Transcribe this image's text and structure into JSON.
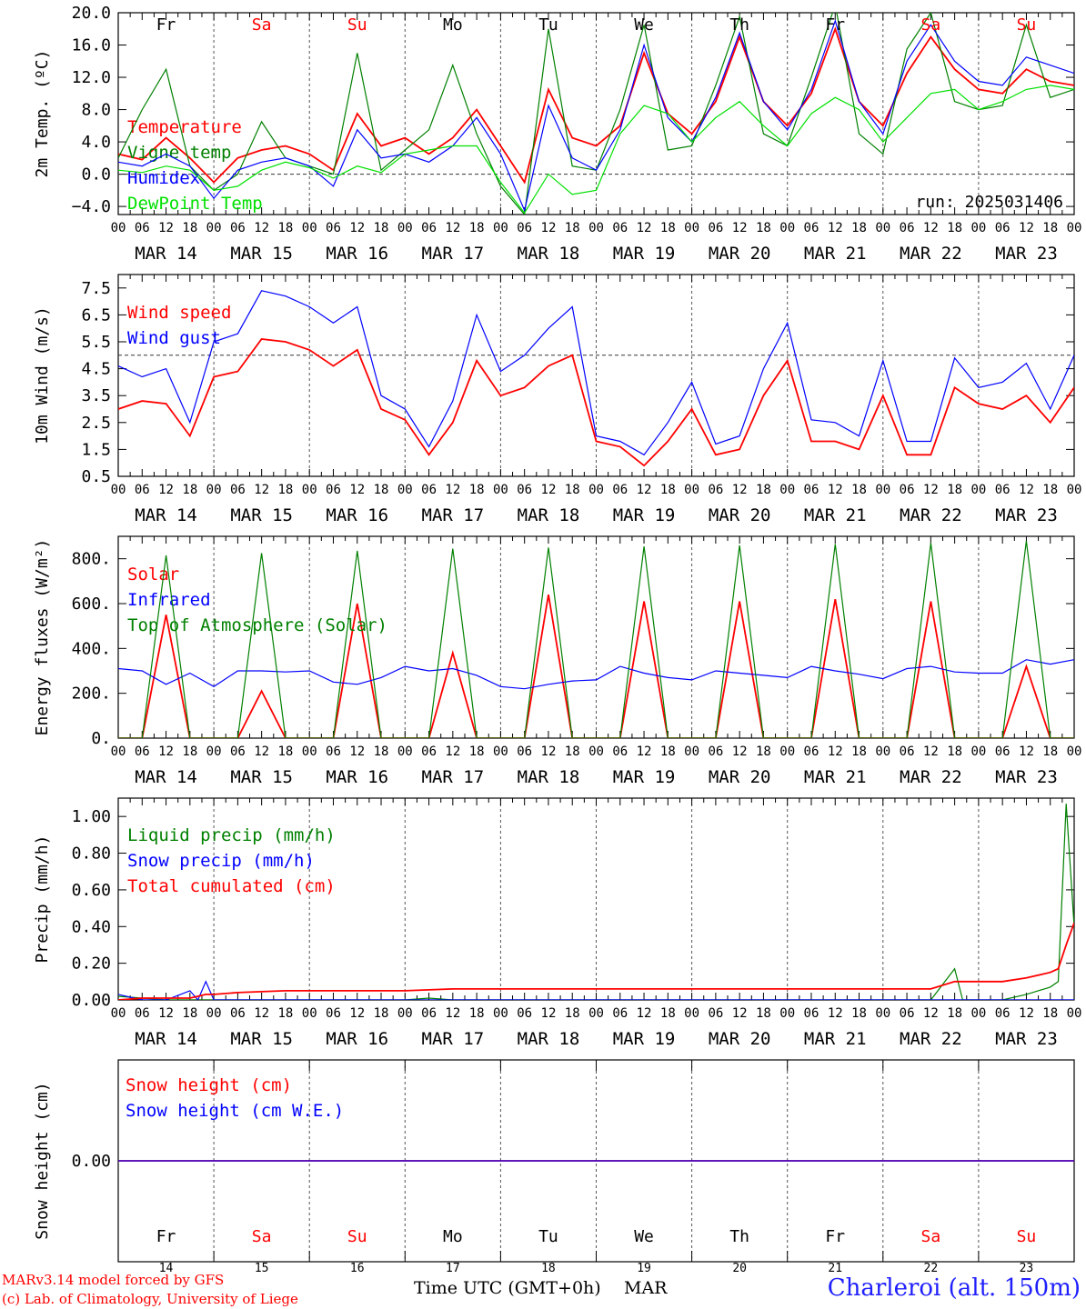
{
  "footer": {
    "credit_line1": "MARv3.14 model forced by GFS",
    "credit_line2": "(c) Lab. of Climatology, University of Liege",
    "x_caption": "Time UTC (GMT+0h)",
    "x_month": "MAR",
    "station": "Charleroi (alt. 150m)"
  },
  "colors": {
    "red": "#ff0000",
    "green": "#008000",
    "blue": "#0000ff",
    "lightgreen": "#00e000",
    "grid": "#555555"
  },
  "chart_data": [
    {
      "id": "temperature",
      "type": "line",
      "ylabel": "2m Temp. (ºC)",
      "ylim": [
        -5.0,
        20.0
      ],
      "yticks": [
        -4.0,
        0.0,
        4.0,
        8.0,
        12.0,
        16.0,
        20.0
      ],
      "ytick_labels": [
        "−4.0",
        "0.0",
        "4.0",
        "8.0",
        "12.0",
        "16.0",
        "20.0"
      ],
      "reference_line": 0,
      "top_day_labels": [
        "Fr",
        "Sa",
        "Su",
        "Mo",
        "Tu",
        "We",
        "Th",
        "Fr",
        "Sa",
        "Su"
      ],
      "annotation": "run: 2025031406",
      "x_hours": [
        0,
        6,
        12,
        18,
        24,
        30,
        36,
        42,
        48,
        54,
        60,
        66,
        72,
        78,
        84,
        90,
        96,
        102,
        108,
        114,
        120,
        126,
        132,
        138,
        144,
        150,
        156,
        162,
        168,
        174,
        180,
        186,
        192,
        198,
        204,
        210,
        216,
        222,
        228,
        234,
        240
      ],
      "series": [
        {
          "name": "Temperature",
          "color": "red",
          "values": [
            2.5,
            1.8,
            4.5,
            2.0,
            -1.0,
            2.0,
            3.0,
            3.5,
            2.5,
            0.5,
            7.5,
            3.5,
            4.5,
            2.5,
            4.5,
            8.0,
            3.5,
            -1.0,
            10.5,
            4.5,
            3.5,
            6.0,
            15.0,
            7.5,
            5.0,
            9.0,
            17.0,
            9.0,
            6.0,
            10.0,
            18.0,
            9.0,
            6.0,
            12.5,
            17.0,
            13.0,
            10.5,
            10.0,
            13.0,
            11.5,
            11.0
          ]
        },
        {
          "name": "Vigne temp",
          "color": "green",
          "values": [
            2.0,
            8.0,
            13.0,
            1.0,
            -2.0,
            0.0,
            6.5,
            2.0,
            1.0,
            0.0,
            15.0,
            0.5,
            3.0,
            5.5,
            13.5,
            5.0,
            -1.5,
            -5.0,
            18.0,
            1.0,
            0.5,
            8.0,
            18.5,
            3.0,
            3.5,
            11.0,
            19.5,
            5.0,
            3.5,
            12.0,
            21.0,
            5.0,
            2.5,
            15.5,
            20.0,
            9.0,
            8.0,
            8.5,
            18.5,
            9.5,
            10.5
          ]
        },
        {
          "name": "Humidex",
          "color": "blue",
          "values": [
            1.5,
            1.0,
            2.5,
            1.0,
            -3.0,
            0.5,
            1.5,
            2.0,
            1.0,
            -1.5,
            5.5,
            2.0,
            2.5,
            1.5,
            3.5,
            7.0,
            2.5,
            -4.5,
            8.5,
            2.0,
            0.5,
            5.5,
            16.0,
            7.0,
            4.0,
            9.5,
            17.5,
            9.0,
            5.5,
            10.5,
            19.0,
            9.0,
            5.0,
            14.0,
            18.5,
            14.0,
            11.5,
            11.0,
            14.5,
            13.5,
            12.5
          ]
        },
        {
          "name": "DewPoint Temp",
          "color": "lightgreen",
          "values": [
            0.5,
            0.2,
            1.0,
            0.5,
            -2.0,
            -1.5,
            0.5,
            1.5,
            0.8,
            -0.5,
            1.0,
            0.2,
            2.5,
            3.0,
            3.5,
            3.5,
            -1.0,
            -4.8,
            0.0,
            -2.5,
            -2.0,
            5.0,
            8.5,
            7.5,
            4.0,
            7.0,
            9.0,
            6.0,
            3.5,
            7.5,
            9.5,
            8.0,
            4.0,
            7.0,
            10.0,
            10.5,
            8.0,
            9.0,
            10.5,
            11.0,
            10.5
          ]
        }
      ]
    },
    {
      "id": "wind",
      "type": "line",
      "ylabel": "10m Wind (m/s)",
      "ylim": [
        0.5,
        8.0
      ],
      "yticks": [
        0.5,
        1.5,
        2.5,
        3.5,
        4.5,
        5.5,
        6.5,
        7.5
      ],
      "ytick_labels": [
        "0.5",
        "1.5",
        "2.5",
        "3.5",
        "4.5",
        "5.5",
        "6.5",
        "7.5"
      ],
      "reference_line": 5.0,
      "x_hours": [
        0,
        6,
        12,
        18,
        24,
        30,
        36,
        42,
        48,
        54,
        60,
        66,
        72,
        78,
        84,
        90,
        96,
        102,
        108,
        114,
        120,
        126,
        132,
        138,
        144,
        150,
        156,
        162,
        168,
        174,
        180,
        186,
        192,
        198,
        204,
        210,
        216,
        222,
        228,
        234,
        240
      ],
      "series": [
        {
          "name": "Wind speed",
          "color": "red",
          "values": [
            3.0,
            3.3,
            3.2,
            2.0,
            4.2,
            4.4,
            5.6,
            5.5,
            5.2,
            4.6,
            5.2,
            3.0,
            2.6,
            1.3,
            2.5,
            4.8,
            3.5,
            3.8,
            4.6,
            5.0,
            1.8,
            1.6,
            0.9,
            1.8,
            3.0,
            1.3,
            1.5,
            3.5,
            4.8,
            1.8,
            1.8,
            1.5,
            3.5,
            1.3,
            1.3,
            3.8,
            3.2,
            3.0,
            3.5,
            2.5,
            3.8
          ]
        },
        {
          "name": "Wind gust",
          "color": "blue",
          "values": [
            4.6,
            4.2,
            4.5,
            2.5,
            5.5,
            5.8,
            7.4,
            7.2,
            6.8,
            6.2,
            6.8,
            3.5,
            3.0,
            1.6,
            3.3,
            6.5,
            4.4,
            5.0,
            6.0,
            6.8,
            2.0,
            1.8,
            1.3,
            2.5,
            4.0,
            1.7,
            2.0,
            4.5,
            6.2,
            2.6,
            2.5,
            2.0,
            4.8,
            1.8,
            1.8,
            4.9,
            3.8,
            4.0,
            4.7,
            3.0,
            5.0
          ]
        }
      ]
    },
    {
      "id": "energy",
      "type": "line",
      "ylabel": "Energy fluxes (W/m²)",
      "ylim": [
        0,
        900
      ],
      "yticks": [
        0,
        200,
        400,
        600,
        800
      ],
      "ytick_labels": [
        "0.",
        "200.",
        "400.",
        "600.",
        "800."
      ],
      "x_hours": [
        0,
        6,
        12,
        18,
        24,
        30,
        36,
        42,
        48,
        54,
        60,
        66,
        72,
        78,
        84,
        90,
        96,
        102,
        108,
        114,
        120,
        126,
        132,
        138,
        144,
        150,
        156,
        162,
        168,
        174,
        180,
        186,
        192,
        198,
        204,
        210,
        216,
        222,
        228,
        234,
        240
      ],
      "series": [
        {
          "name": "Solar",
          "color": "red",
          "values": [
            0,
            0,
            550,
            0,
            0,
            0,
            210,
            0,
            0,
            0,
            600,
            0,
            0,
            0,
            380,
            0,
            0,
            0,
            640,
            0,
            0,
            0,
            610,
            0,
            0,
            0,
            610,
            0,
            0,
            0,
            620,
            0,
            0,
            0,
            610,
            0,
            0,
            0,
            320,
            0,
            0
          ]
        },
        {
          "name": "Infrared",
          "color": "blue",
          "values": [
            310,
            300,
            240,
            290,
            230,
            300,
            300,
            295,
            300,
            250,
            240,
            270,
            320,
            300,
            310,
            280,
            230,
            220,
            240,
            255,
            260,
            320,
            290,
            270,
            260,
            300,
            290,
            280,
            270,
            320,
            300,
            285,
            265,
            310,
            320,
            295,
            290,
            290,
            350,
            330,
            350
          ]
        },
        {
          "name": "Top of Atmosphere (Solar)",
          "color": "green",
          "values": [
            0,
            0,
            815,
            0,
            0,
            0,
            825,
            0,
            0,
            0,
            835,
            0,
            0,
            0,
            845,
            0,
            0,
            0,
            850,
            0,
            0,
            0,
            855,
            0,
            0,
            0,
            860,
            0,
            0,
            0,
            865,
            0,
            0,
            0,
            870,
            0,
            0,
            0,
            880,
            0,
            0
          ]
        }
      ]
    },
    {
      "id": "precip",
      "type": "line",
      "ylabel": "Precip (mm/h)",
      "ylim": [
        0,
        1.1
      ],
      "yticks": [
        0.0,
        0.2,
        0.4,
        0.6,
        0.8,
        1.0
      ],
      "ytick_labels": [
        "0.00",
        "0.20",
        "0.40",
        "0.60",
        "0.80",
        "1.00"
      ],
      "x_hours": [
        0,
        6,
        12,
        18,
        20,
        22,
        24,
        30,
        36,
        42,
        48,
        54,
        60,
        66,
        72,
        78,
        84,
        90,
        96,
        120,
        144,
        168,
        192,
        204,
        210,
        212,
        214,
        216,
        222,
        228,
        234,
        236,
        238,
        240
      ],
      "series": [
        {
          "name": "Liquid precip (mm/h)",
          "color": "green",
          "values": [
            0.02,
            0.01,
            0.0,
            0.0,
            0.0,
            0.0,
            0.0,
            0.0,
            0.0,
            0.0,
            0.0,
            0.0,
            0.0,
            0.0,
            0.0,
            0.01,
            0.0,
            0.0,
            0.0,
            0.0,
            0.0,
            0.0,
            0.0,
            0.0,
            0.17,
            0.0,
            0.0,
            0.0,
            0.0,
            0.03,
            0.07,
            0.1,
            1.07,
            0.4
          ]
        },
        {
          "name": "Snow precip (mm/h)",
          "color": "blue",
          "values": [
            0.03,
            0.0,
            0.0,
            0.05,
            0.0,
            0.1,
            0.0,
            0.0,
            0.0,
            0.0,
            0.0,
            0.0,
            0.0,
            0.0,
            0.0,
            0.0,
            0.0,
            0.0,
            0.0,
            0.0,
            0.0,
            0.0,
            0.0,
            0.0,
            0.0,
            0.0,
            0.0,
            0.0,
            0.0,
            0.0,
            0.0,
            0.0,
            0.0,
            0.0
          ]
        },
        {
          "name": "Total cumulated (cm)",
          "color": "red",
          "values": [
            0.0,
            0.01,
            0.01,
            0.01,
            0.02,
            0.03,
            0.03,
            0.04,
            0.045,
            0.05,
            0.05,
            0.05,
            0.05,
            0.05,
            0.05,
            0.055,
            0.06,
            0.06,
            0.06,
            0.06,
            0.06,
            0.06,
            0.06,
            0.06,
            0.1,
            0.1,
            0.1,
            0.1,
            0.1,
            0.12,
            0.15,
            0.17,
            0.3,
            0.42
          ]
        }
      ]
    },
    {
      "id": "snow",
      "type": "line",
      "ylabel": "Snow height (cm)",
      "ylim": [
        -1,
        1
      ],
      "yticks": [
        0.0
      ],
      "ytick_labels": [
        "0.00"
      ],
      "day_labels": [
        "Fr",
        "Sa",
        "Su",
        "Mo",
        "Tu",
        "We",
        "Th",
        "Fr",
        "Sa",
        "Su"
      ],
      "day_numbers": [
        "14",
        "15",
        "16",
        "17",
        "18",
        "19",
        "20",
        "21",
        "22",
        "23"
      ],
      "x_hours": [
        0,
        240
      ],
      "series": [
        {
          "name": "Snow height (cm)",
          "color": "red",
          "values": [
            0.0,
            0.0
          ]
        },
        {
          "name": "Snow height (cm W.E.)",
          "color": "blue",
          "values": [
            0.0,
            0.0
          ]
        }
      ]
    }
  ],
  "x_axis": {
    "hour_labels": [
      "00",
      "06",
      "12",
      "18"
    ],
    "end_label": "00",
    "date_labels": [
      "MAR 14",
      "MAR 15",
      "MAR 16",
      "MAR 17",
      "MAR 18",
      "MAR 19",
      "MAR 20",
      "MAR 21",
      "MAR 22",
      "MAR 23"
    ],
    "weekend_days": [
      "Sa",
      "Su"
    ]
  }
}
